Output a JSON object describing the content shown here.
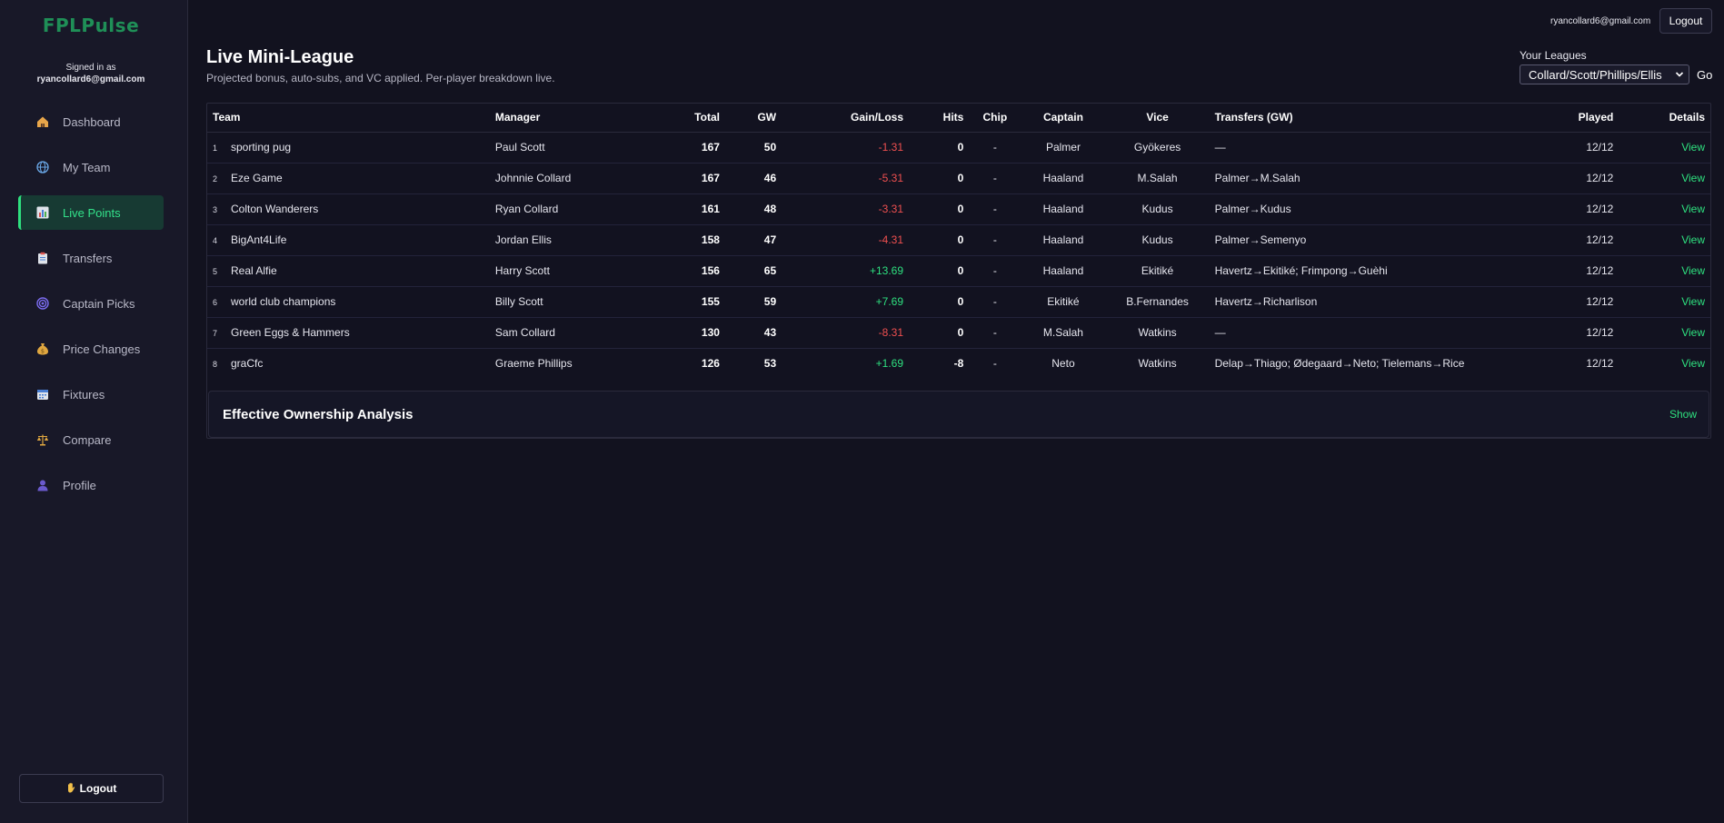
{
  "app": {
    "logo": "FPLPulse",
    "signed_in_label": "Signed in as",
    "email": "ryancollard6@gmail.com"
  },
  "sidebar": {
    "items": [
      {
        "label": "Dashboard",
        "icon": "house-icon",
        "active": false
      },
      {
        "label": "My Team",
        "icon": "globe-icon",
        "active": false
      },
      {
        "label": "Live Points",
        "icon": "bar-chart-icon",
        "active": true
      },
      {
        "label": "Transfers",
        "icon": "clipboard-icon",
        "active": false
      },
      {
        "label": "Captain Picks",
        "icon": "target-icon",
        "active": false
      },
      {
        "label": "Price Changes",
        "icon": "money-bag-icon",
        "active": false
      },
      {
        "label": "Fixtures",
        "icon": "calendar-icon",
        "active": false
      },
      {
        "label": "Compare",
        "icon": "scales-icon",
        "active": false
      },
      {
        "label": "Profile",
        "icon": "user-icon",
        "active": false
      }
    ],
    "logout_label": "Logout"
  },
  "topbar": {
    "email": "ryancollard6@gmail.com",
    "logout_label": "Logout"
  },
  "header": {
    "title": "Live Mini-League",
    "subtitle": "Projected bonus, auto-subs, and VC applied. Per-player breakdown live.",
    "leagues_label": "Your Leagues",
    "selected_league": "Collard/Scott/Phillips/Ellis",
    "go_label": "Go"
  },
  "table": {
    "headers": {
      "team": "Team",
      "manager": "Manager",
      "total": "Total",
      "gw": "GW",
      "gain": "Gain/Loss",
      "hits": "Hits",
      "chip": "Chip",
      "captain": "Captain",
      "vice": "Vice",
      "transfers": "Transfers (GW)",
      "played": "Played",
      "details": "Details"
    },
    "rows": [
      {
        "rank": "1",
        "team": "sporting pug",
        "manager": "Paul Scott",
        "total": "167",
        "gw": "50",
        "gain": "-1.31",
        "gain_sign": "neg",
        "hits": "0",
        "chip": "-",
        "captain": "Palmer",
        "vice": "Gyökeres",
        "transfers": "—",
        "played": "12/12",
        "details": "View"
      },
      {
        "rank": "2",
        "team": "Eze Game",
        "manager": "Johnnie Collard",
        "total": "167",
        "gw": "46",
        "gain": "-5.31",
        "gain_sign": "neg",
        "hits": "0",
        "chip": "-",
        "captain": "Haaland",
        "vice": "M.Salah",
        "transfers": "Palmer→M.Salah",
        "played": "12/12",
        "details": "View"
      },
      {
        "rank": "3",
        "team": "Colton Wanderers",
        "manager": "Ryan Collard",
        "total": "161",
        "gw": "48",
        "gain": "-3.31",
        "gain_sign": "neg",
        "hits": "0",
        "chip": "-",
        "captain": "Haaland",
        "vice": "Kudus",
        "transfers": "Palmer→Kudus",
        "played": "12/12",
        "details": "View"
      },
      {
        "rank": "4",
        "team": "BigAnt4Life",
        "manager": "Jordan Ellis",
        "total": "158",
        "gw": "47",
        "gain": "-4.31",
        "gain_sign": "neg",
        "hits": "0",
        "chip": "-",
        "captain": "Haaland",
        "vice": "Kudus",
        "transfers": "Palmer→Semenyo",
        "played": "12/12",
        "details": "View"
      },
      {
        "rank": "5",
        "team": "Real Alfie",
        "manager": "Harry Scott",
        "total": "156",
        "gw": "65",
        "gain": "+13.69",
        "gain_sign": "pos",
        "hits": "0",
        "chip": "-",
        "captain": "Haaland",
        "vice": "Ekitiké",
        "transfers": "Havertz→Ekitiké; Frimpong→Guèhi",
        "played": "12/12",
        "details": "View"
      },
      {
        "rank": "6",
        "team": "world club champions",
        "manager": "Billy Scott",
        "total": "155",
        "gw": "59",
        "gain": "+7.69",
        "gain_sign": "pos",
        "hits": "0",
        "chip": "-",
        "captain": "Ekitiké",
        "vice": "B.Fernandes",
        "transfers": "Havertz→Richarlison",
        "played": "12/12",
        "details": "View"
      },
      {
        "rank": "7",
        "team": "Green Eggs & Hammers",
        "manager": "Sam Collard",
        "total": "130",
        "gw": "43",
        "gain": "-8.31",
        "gain_sign": "neg",
        "hits": "0",
        "chip": "-",
        "captain": "M.Salah",
        "vice": "Watkins",
        "transfers": "—",
        "played": "12/12",
        "details": "View"
      },
      {
        "rank": "8",
        "team": "graCfc",
        "manager": "Graeme Phillips",
        "total": "126",
        "gw": "53",
        "gain": "+1.69",
        "gain_sign": "pos",
        "hits": "-8",
        "chip": "-",
        "captain": "Neto",
        "vice": "Watkins",
        "transfers": "Delap→Thiago; Ødegaard→Neto; Tielemans→Rice",
        "played": "12/12",
        "details": "View"
      }
    ]
  },
  "eo_panel": {
    "title": "Effective Ownership Analysis",
    "toggle_label": "Show"
  },
  "colors": {
    "background": "#12121f",
    "sidebar": "#181828",
    "accent": "#2ee07f",
    "negative": "#f05050",
    "logo": "#1f8f57"
  }
}
